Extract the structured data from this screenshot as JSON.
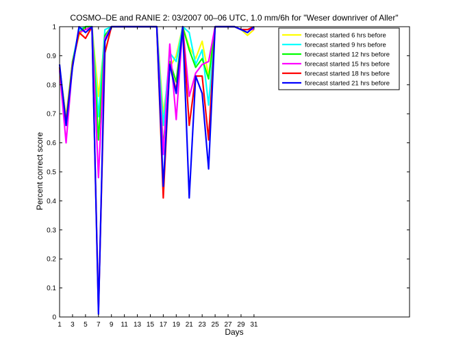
{
  "chart_data": {
    "type": "line",
    "title": "COSMO–DE and RANIE 2: 03/2007 00–06 UTC, 1.0 mm/6h for \"Weser downriver of Aller\"",
    "xlabel": "Days",
    "ylabel": "Percent correct score",
    "xlim": [
      1,
      55
    ],
    "ylim": [
      0,
      1
    ],
    "xticks": [
      1,
      3,
      5,
      7,
      9,
      11,
      13,
      15,
      17,
      19,
      21,
      23,
      25,
      27,
      29,
      31
    ],
    "yticks": [
      0,
      0.1,
      0.2,
      0.3,
      0.4,
      0.5,
      0.6,
      0.7,
      0.8,
      0.9,
      1
    ],
    "grid": false,
    "legend_position": "top-right",
    "x": [
      1,
      2,
      3,
      4,
      5,
      6,
      7,
      8,
      9,
      10,
      11,
      12,
      13,
      14,
      15,
      16,
      17,
      18,
      19,
      20,
      21,
      22,
      23,
      24,
      25,
      26,
      27,
      28,
      29,
      30,
      31
    ],
    "series": [
      {
        "name": "forecast started 6 hrs before",
        "color": "#ffff00",
        "values": [
          0.86,
          0.69,
          0.88,
          0.97,
          1.0,
          1.0,
          0.76,
          0.96,
          1.0,
          1.0,
          1.0,
          1.0,
          1.0,
          1.0,
          1.0,
          1.0,
          0.7,
          0.86,
          0.9,
          1.0,
          0.93,
          0.89,
          0.95,
          0.83,
          1.0,
          1.0,
          1.0,
          1.0,
          0.99,
          0.97,
          0.99
        ]
      },
      {
        "name": "forecast started 9 hrs before",
        "color": "#00ffff",
        "values": [
          0.86,
          0.68,
          0.88,
          0.99,
          1.0,
          1.0,
          0.69,
          0.99,
          1.0,
          1.0,
          1.0,
          1.0,
          1.0,
          1.0,
          1.0,
          1.0,
          0.66,
          0.91,
          0.88,
          1.0,
          0.98,
          0.87,
          0.92,
          0.73,
          1.0,
          1.0,
          1.0,
          1.0,
          0.99,
          0.98,
          1.0
        ]
      },
      {
        "name": "forecast started 12 hrs before",
        "color": "#00ff00",
        "values": [
          0.86,
          0.67,
          0.88,
          0.98,
          1.0,
          1.0,
          0.61,
          0.97,
          1.0,
          1.0,
          1.0,
          1.0,
          1.0,
          1.0,
          1.0,
          1.0,
          0.58,
          0.88,
          0.81,
          1.0,
          0.92,
          0.86,
          0.89,
          0.82,
          1.0,
          1.0,
          1.0,
          1.0,
          0.99,
          0.99,
          1.0
        ]
      },
      {
        "name": "forecast started 15 hrs before",
        "color": "#ff00ff",
        "values": [
          0.85,
          0.6,
          0.87,
          0.98,
          0.99,
          1.0,
          0.48,
          0.96,
          1.0,
          1.0,
          1.0,
          1.0,
          1.0,
          1.0,
          1.0,
          1.0,
          0.56,
          0.94,
          0.68,
          1.0,
          0.76,
          0.84,
          0.87,
          0.88,
          1.0,
          1.0,
          1.0,
          1.0,
          0.99,
          0.99,
          0.99
        ]
      },
      {
        "name": "forecast started 18 hrs before",
        "color": "#ff0000",
        "values": [
          0.86,
          0.67,
          0.87,
          0.98,
          0.96,
          1.0,
          0.02,
          0.91,
          1.0,
          1.0,
          1.0,
          1.0,
          1.0,
          1.0,
          1.0,
          1.0,
          0.41,
          0.87,
          0.78,
          1.0,
          0.66,
          0.83,
          0.83,
          0.61,
          1.0,
          1.0,
          1.0,
          1.0,
          0.99,
          0.99,
          1.0
        ]
      },
      {
        "name": "forecast started 21 hrs before",
        "color": "#0000ff",
        "values": [
          0.87,
          0.66,
          0.86,
          1.0,
          0.98,
          1.0,
          0.01,
          0.95,
          1.0,
          1.0,
          1.0,
          1.0,
          1.0,
          1.0,
          1.0,
          1.0,
          0.45,
          0.87,
          0.77,
          1.0,
          0.41,
          0.83,
          0.77,
          0.51,
          1.0,
          1.0,
          1.0,
          1.0,
          0.99,
          0.98,
          1.0
        ]
      }
    ]
  }
}
